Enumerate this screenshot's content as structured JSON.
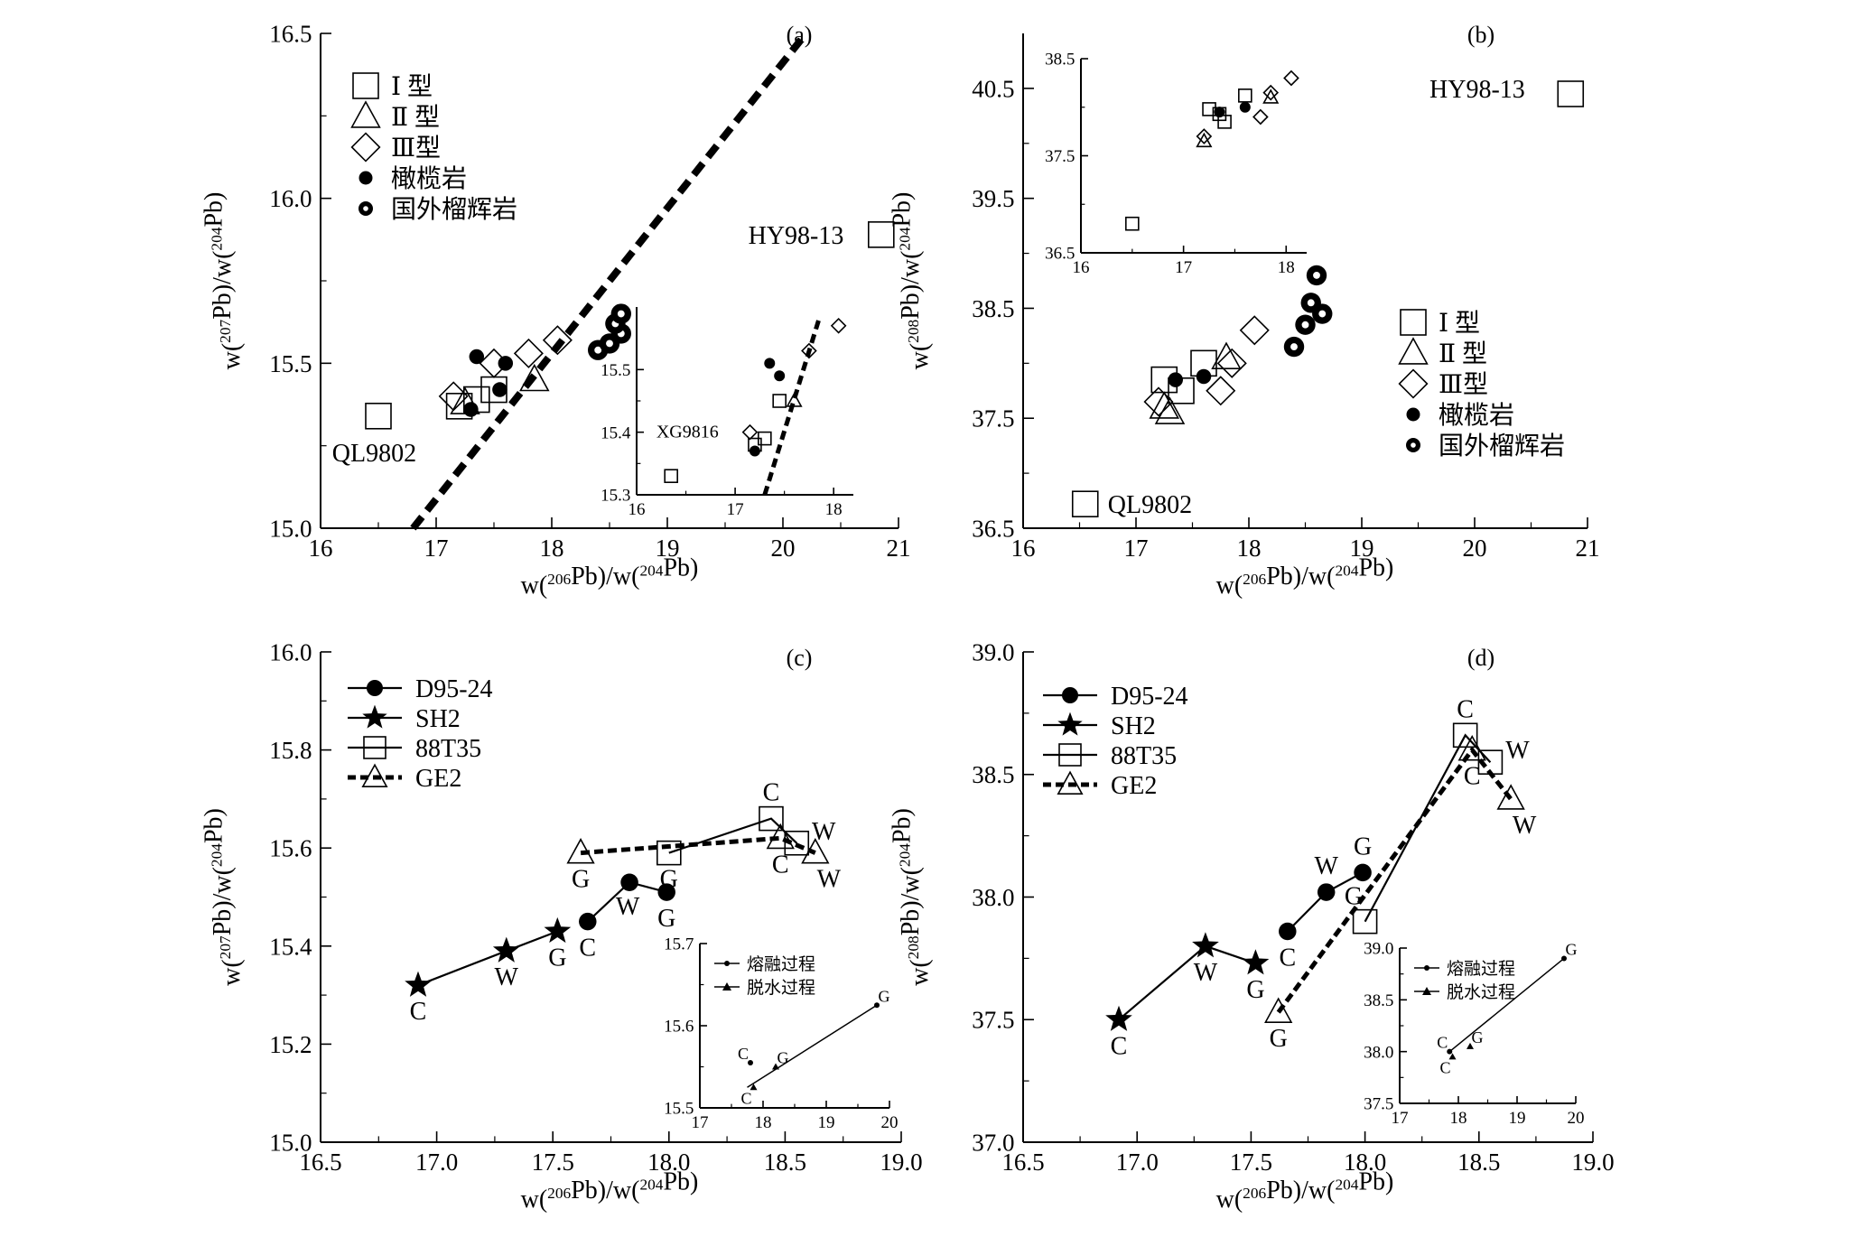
{
  "chart_data": [
    {
      "id": "a",
      "type": "scatter",
      "panel_label": "(a)",
      "xlabel": "w(206Pb)/w(204Pb)",
      "ylabel": "w(207Pb)/w(204Pb)",
      "xlim": [
        16,
        21
      ],
      "ylim": [
        15.0,
        16.5
      ],
      "xticks": [
        "16",
        "17",
        "18",
        "19",
        "20",
        "21"
      ],
      "yticks": [
        "15.0",
        "15.5",
        "16.0",
        "16.5"
      ],
      "legend_position": "top-left",
      "legend": [
        {
          "label": "Ⅰ 型",
          "marker": "square"
        },
        {
          "label": "Ⅱ 型",
          "marker": "triangle"
        },
        {
          "label": "Ⅲ型",
          "marker": "diamond"
        },
        {
          "label": "橄榄岩",
          "marker": "dot"
        },
        {
          "label": "国外榴辉岩",
          "marker": "ring"
        }
      ],
      "series": [
        {
          "name": "Ⅰ 型",
          "marker": "square",
          "points": [
            [
              17.2,
              15.37
            ],
            [
              17.35,
              15.39
            ],
            [
              17.5,
              15.42
            ],
            [
              20.85,
              15.89
            ],
            [
              16.5,
              15.34
            ]
          ]
        },
        {
          "name": "Ⅱ 型",
          "marker": "triangle",
          "points": [
            [
              17.25,
              15.38
            ],
            [
              17.85,
              15.45
            ]
          ]
        },
        {
          "name": "Ⅲ型",
          "marker": "diamond",
          "points": [
            [
              17.15,
              15.4
            ],
            [
              17.8,
              15.53
            ],
            [
              18.05,
              15.57
            ],
            [
              17.5,
              15.5
            ]
          ]
        },
        {
          "name": "橄榄岩",
          "marker": "dot",
          "points": [
            [
              17.35,
              15.52
            ],
            [
              17.6,
              15.5
            ],
            [
              17.3,
              15.36
            ],
            [
              17.55,
              15.42
            ]
          ]
        },
        {
          "name": "国外榴辉岩",
          "marker": "ring",
          "points": [
            [
              18.4,
              15.54
            ],
            [
              18.5,
              15.56
            ],
            [
              18.6,
              15.59
            ],
            [
              18.55,
              15.62
            ],
            [
              18.6,
              15.65
            ]
          ]
        }
      ],
      "reference_line": [
        [
          16.8,
          15.0
        ],
        [
          20.2,
          16.5
        ]
      ],
      "annotations": [
        {
          "text": "HY98-13",
          "at": [
            19.7,
            15.89
          ]
        },
        {
          "text": "QL9802",
          "at": [
            16.1,
            15.23
          ]
        }
      ],
      "inset": {
        "xlim": [
          16,
          18.2
        ],
        "ylim": [
          15.3,
          15.6
        ],
        "xticks": [
          "16",
          "17",
          "18"
        ],
        "yticks": [
          "15.3",
          "15.4",
          "15.5"
        ],
        "series": [
          {
            "marker": "square",
            "points": [
              [
                16.35,
                15.33
              ],
              [
                17.2,
                15.38
              ],
              [
                17.3,
                15.39
              ],
              [
                17.45,
                15.45
              ]
            ]
          },
          {
            "marker": "triangle",
            "points": [
              [
                17.6,
                15.45
              ]
            ]
          },
          {
            "marker": "diamond",
            "points": [
              [
                17.15,
                15.4
              ],
              [
                17.75,
                15.53
              ],
              [
                18.05,
                15.57
              ]
            ]
          },
          {
            "marker": "dot",
            "points": [
              [
                17.35,
                15.51
              ],
              [
                17.45,
                15.49
              ],
              [
                17.2,
                15.37
              ]
            ]
          }
        ],
        "reference_line": [
          [
            17.3,
            15.3
          ],
          [
            17.85,
            15.58
          ]
        ],
        "annotation": {
          "text": "XG9816",
          "at": [
            16.2,
            15.4
          ]
        }
      }
    },
    {
      "id": "b",
      "type": "scatter",
      "panel_label": "(b)",
      "xlabel": "w(206Pb)/w(204Pb)",
      "ylabel": "w(208Pb)/w(204Pb)",
      "xlim": [
        16,
        21
      ],
      "ylim": [
        36.5,
        41.0
      ],
      "xticks": [
        "16",
        "17",
        "18",
        "19",
        "20",
        "21"
      ],
      "yticks": [
        "36.5",
        "37.5",
        "38.5",
        "39.5",
        "40.5"
      ],
      "legend_position": "right",
      "legend": [
        {
          "label": "Ⅰ 型",
          "marker": "square"
        },
        {
          "label": "Ⅱ 型",
          "marker": "triangle"
        },
        {
          "label": "Ⅲ型",
          "marker": "diamond"
        },
        {
          "label": "橄榄岩",
          "marker": "dot"
        },
        {
          "label": "国外榴辉岩",
          "marker": "ring"
        }
      ],
      "series": [
        {
          "name": "Ⅰ 型",
          "marker": "square",
          "points": [
            [
              17.25,
              37.85
            ],
            [
              17.4,
              37.75
            ],
            [
              17.6,
              38.0
            ],
            [
              20.85,
              40.45
            ],
            [
              16.55,
              36.72
            ]
          ]
        },
        {
          "name": "Ⅱ 型",
          "marker": "triangle",
          "points": [
            [
              17.25,
              37.6
            ],
            [
              17.3,
              37.55
            ],
            [
              17.8,
              38.05
            ]
          ]
        },
        {
          "name": "Ⅲ型",
          "marker": "diamond",
          "points": [
            [
              17.2,
              37.65
            ],
            [
              17.75,
              37.75
            ],
            [
              17.85,
              38.0
            ],
            [
              18.05,
              38.3
            ]
          ]
        },
        {
          "name": "橄榄岩",
          "marker": "dot",
          "points": [
            [
              17.35,
              37.85
            ],
            [
              17.6,
              37.88
            ]
          ]
        },
        {
          "name": "国外榴辉岩",
          "marker": "ring",
          "points": [
            [
              18.4,
              38.15
            ],
            [
              18.5,
              38.35
            ],
            [
              18.55,
              38.55
            ],
            [
              18.65,
              38.45
            ],
            [
              18.6,
              38.8
            ]
          ]
        }
      ],
      "annotations": [
        {
          "text": "HY98-13",
          "at": [
            19.6,
            40.5
          ]
        },
        {
          "text": "QL9802",
          "at": [
            16.75,
            36.72
          ]
        }
      ],
      "inset": {
        "xlim": [
          16,
          18.2
        ],
        "ylim": [
          36.5,
          38.5
        ],
        "xticks": [
          "16",
          "17",
          "18"
        ],
        "yticks": [
          "36.5",
          "37.5",
          "38.5"
        ],
        "series": [
          {
            "marker": "square",
            "points": [
              [
                16.5,
                36.8
              ],
              [
                17.25,
                37.98
              ],
              [
                17.35,
                37.93
              ],
              [
                17.4,
                37.85
              ],
              [
                17.6,
                38.12
              ]
            ]
          },
          {
            "marker": "triangle",
            "points": [
              [
                17.85,
                38.1
              ],
              [
                17.2,
                37.65
              ]
            ]
          },
          {
            "marker": "diamond",
            "points": [
              [
                17.2,
                37.7
              ],
              [
                17.75,
                37.9
              ],
              [
                17.85,
                38.15
              ],
              [
                18.05,
                38.3
              ]
            ]
          },
          {
            "marker": "dot",
            "points": [
              [
                17.35,
                37.95
              ],
              [
                17.6,
                38.0
              ]
            ]
          }
        ]
      }
    },
    {
      "id": "c",
      "type": "line",
      "panel_label": "(c)",
      "xlabel": "w(206Pb)/w(204Pb)",
      "ylabel": "w(207Pb)/w(204Pb)",
      "xlim": [
        16.5,
        19.0
      ],
      "ylim": [
        15.0,
        16.0
      ],
      "xticks": [
        "16.5",
        "17.0",
        "17.5",
        "18.0",
        "18.5",
        "19.0"
      ],
      "yticks": [
        "15.0",
        "15.2",
        "15.4",
        "15.6",
        "15.8",
        "16.0"
      ],
      "legend_position": "top-left",
      "legend": [
        {
          "label": "D95-24",
          "marker": "dot",
          "dashed": false
        },
        {
          "label": "SH2",
          "marker": "star",
          "dashed": false
        },
        {
          "label": "88T35",
          "marker": "square",
          "dashed": false
        },
        {
          "label": "GE2",
          "marker": "triangle",
          "dashed": true
        }
      ],
      "series": [
        {
          "name": "D95-24",
          "marker": "dot",
          "dashed": false,
          "points": [
            {
              "x": 17.65,
              "y": 15.45,
              "label": "C"
            },
            {
              "x": 17.83,
              "y": 15.53,
              "label": "W"
            },
            {
              "x": 17.99,
              "y": 15.51,
              "label": "G"
            }
          ]
        },
        {
          "name": "SH2",
          "marker": "star",
          "dashed": false,
          "points": [
            {
              "x": 16.92,
              "y": 15.32,
              "label": "C"
            },
            {
              "x": 17.3,
              "y": 15.39,
              "label": "W"
            },
            {
              "x": 17.52,
              "y": 15.43,
              "label": "G"
            }
          ]
        },
        {
          "name": "88T35",
          "marker": "square",
          "dashed": false,
          "points": [
            {
              "x": 18.0,
              "y": 15.59,
              "label": "G"
            },
            {
              "x": 18.44,
              "y": 15.66,
              "label": "C"
            },
            {
              "x": 18.55,
              "y": 15.61,
              "label": "W"
            }
          ]
        },
        {
          "name": "GE2",
          "marker": "triangle",
          "dashed": true,
          "points": [
            {
              "x": 17.62,
              "y": 15.59,
              "label": "G"
            },
            {
              "x": 18.48,
              "y": 15.62,
              "label": "C"
            },
            {
              "x": 18.63,
              "y": 15.59,
              "label": "W"
            }
          ]
        }
      ],
      "inset": {
        "xlim": [
          17,
          20
        ],
        "ylim": [
          15.5,
          15.7
        ],
        "xticks": [
          "17",
          "18",
          "19",
          "20"
        ],
        "yticks": [
          "15.5",
          "15.6",
          "15.7"
        ],
        "legend": [
          {
            "label": "熔融过程",
            "marker": "dot"
          },
          {
            "label": "脱水过程",
            "marker": "triangle"
          }
        ],
        "line": [
          [
            17.75,
            15.525
          ],
          [
            19.8,
            15.625
          ]
        ],
        "points": [
          {
            "x": 17.8,
            "y": 15.555,
            "label": "C",
            "marker": "dot"
          },
          {
            "x": 17.85,
            "y": 15.525,
            "label": "C",
            "marker": "triangle"
          },
          {
            "x": 18.2,
            "y": 15.55,
            "label": "G",
            "marker": "triangle"
          },
          {
            "x": 19.8,
            "y": 15.625,
            "label": "G",
            "marker": "dot"
          }
        ]
      }
    },
    {
      "id": "d",
      "type": "line",
      "panel_label": "(d)",
      "xlabel": "w(206Pb)/w(204Pb)",
      "ylabel": "w(208Pb)/w(204Pb)",
      "xlim": [
        16.5,
        19.0
      ],
      "ylim": [
        37.0,
        39.0
      ],
      "xticks": [
        "16.5",
        "17.0",
        "17.5",
        "18.0",
        "18.5",
        "19.0"
      ],
      "yticks": [
        "37.0",
        "37.5",
        "38.0",
        "38.5",
        "39.0"
      ],
      "legend_position": "top-left",
      "legend": [
        {
          "label": "D95-24",
          "marker": "dot",
          "dashed": false
        },
        {
          "label": "SH2",
          "marker": "star",
          "dashed": false
        },
        {
          "label": "88T35",
          "marker": "square",
          "dashed": false
        },
        {
          "label": "GE2",
          "marker": "triangle",
          "dashed": true
        }
      ],
      "series": [
        {
          "name": "D95-24",
          "marker": "dot",
          "dashed": false,
          "points": [
            {
              "x": 17.66,
              "y": 37.86,
              "label": "C"
            },
            {
              "x": 17.83,
              "y": 38.02,
              "label": "W"
            },
            {
              "x": 17.99,
              "y": 38.1,
              "label": "G"
            }
          ]
        },
        {
          "name": "SH2",
          "marker": "star",
          "dashed": false,
          "points": [
            {
              "x": 16.92,
              "y": 37.5,
              "label": "C"
            },
            {
              "x": 17.3,
              "y": 37.8,
              "label": "W"
            },
            {
              "x": 17.52,
              "y": 37.73,
              "label": "G"
            }
          ]
        },
        {
          "name": "88T35",
          "marker": "square",
          "dashed": false,
          "points": [
            {
              "x": 18.0,
              "y": 37.9,
              "label": ""
            },
            {
              "x": 18.44,
              "y": 38.66,
              "label": "C"
            },
            {
              "x": 18.55,
              "y": 38.55,
              "label": "W"
            }
          ]
        },
        {
          "name": "GE2",
          "marker": "triangle",
          "dashed": true,
          "points": [
            {
              "x": 17.62,
              "y": 37.53,
              "label": "G"
            },
            {
              "x": 18.47,
              "y": 38.6,
              "label": "C"
            },
            {
              "x": 18.64,
              "y": 38.4,
              "label": "W"
            }
          ]
        }
      ],
      "extra_labels": [
        {
          "text": "G",
          "x": 17.95,
          "y": 38.0
        }
      ],
      "inset": {
        "xlim": [
          17,
          20
        ],
        "ylim": [
          37.5,
          39.0
        ],
        "xticks": [
          "17",
          "18",
          "19",
          "20"
        ],
        "yticks": [
          "37.5",
          "38.0",
          "38.5",
          "39.0"
        ],
        "legend": [
          {
            "label": "熔融过程",
            "marker": "dot"
          },
          {
            "label": "脱水过程",
            "marker": "triangle"
          }
        ],
        "line": [
          [
            17.85,
            38.0
          ],
          [
            19.8,
            38.9
          ]
        ],
        "points": [
          {
            "x": 17.85,
            "y": 38.0,
            "label": "C",
            "marker": "dot"
          },
          {
            "x": 17.9,
            "y": 37.95,
            "label": "C",
            "marker": "triangle"
          },
          {
            "x": 18.2,
            "y": 38.05,
            "label": "G",
            "marker": "triangle"
          },
          {
            "x": 19.8,
            "y": 38.9,
            "label": "G",
            "marker": "dot"
          }
        ]
      }
    }
  ]
}
